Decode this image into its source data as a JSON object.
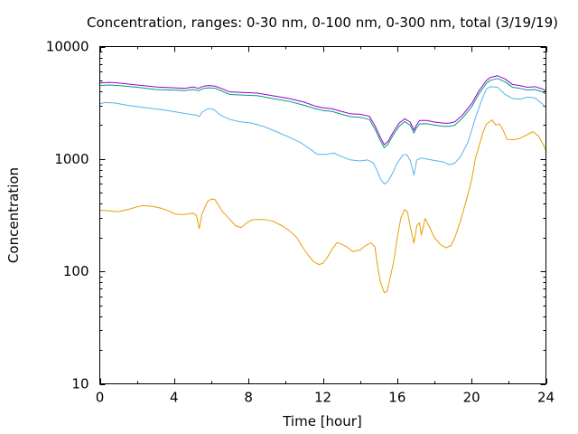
{
  "chart_data": {
    "type": "line",
    "title": "Concentration, ranges: 0-30 nm, 0-100 nm, 0-300 nm, total (3/19/19)",
    "xlabel": "Time [hour]",
    "ylabel": "Concentration",
    "xlim": [
      0,
      24
    ],
    "ylim": [
      10,
      10000
    ],
    "yscale": "log",
    "grid": false,
    "legend": "none",
    "xticks": [
      0,
      4,
      8,
      12,
      16,
      20,
      24
    ],
    "xtick_labels": [
      "0",
      "4",
      "8",
      "12",
      "16",
      "20",
      "24"
    ],
    "yticks": [
      10,
      100,
      1000,
      10000
    ],
    "ytick_labels": [
      "10",
      "100",
      "1000",
      "10000"
    ],
    "series": [
      {
        "color": "#e69f00",
        "points": [
          [
            0,
            350
          ],
          [
            0.5,
            345
          ],
          [
            1,
            340
          ],
          [
            1.5,
            355
          ],
          [
            2,
            375
          ],
          [
            2.3,
            385
          ],
          [
            2.8,
            380
          ],
          [
            3.3,
            365
          ],
          [
            3.8,
            340
          ],
          [
            4,
            325
          ],
          [
            4.5,
            320
          ],
          [
            5,
            330
          ],
          [
            5.2,
            315
          ],
          [
            5.35,
            240
          ],
          [
            5.5,
            325
          ],
          [
            5.8,
            420
          ],
          [
            6,
            440
          ],
          [
            6.2,
            435
          ],
          [
            6.6,
            340
          ],
          [
            7,
            290
          ],
          [
            7.3,
            255
          ],
          [
            7.6,
            245
          ],
          [
            7.9,
            270
          ],
          [
            8.2,
            288
          ],
          [
            8.8,
            290
          ],
          [
            9.3,
            280
          ],
          [
            9.8,
            255
          ],
          [
            10.2,
            230
          ],
          [
            10.6,
            200
          ],
          [
            10.9,
            165
          ],
          [
            11.2,
            140
          ],
          [
            11.5,
            122
          ],
          [
            11.8,
            115
          ],
          [
            12,
            118
          ],
          [
            12.2,
            130
          ],
          [
            12.5,
            158
          ],
          [
            12.75,
            180
          ],
          [
            13,
            175
          ],
          [
            13.3,
            165
          ],
          [
            13.6,
            150
          ],
          [
            14,
            155
          ],
          [
            14.3,
            170
          ],
          [
            14.6,
            180
          ],
          [
            14.8,
            165
          ],
          [
            14.95,
            110
          ],
          [
            15.1,
            80
          ],
          [
            15.3,
            65
          ],
          [
            15.45,
            66
          ],
          [
            15.6,
            85
          ],
          [
            15.8,
            120
          ],
          [
            16,
            200
          ],
          [
            16.2,
            300
          ],
          [
            16.4,
            355
          ],
          [
            16.55,
            340
          ],
          [
            16.7,
            250
          ],
          [
            16.9,
            178
          ],
          [
            17.05,
            255
          ],
          [
            17.2,
            270
          ],
          [
            17.3,
            210
          ],
          [
            17.5,
            295
          ],
          [
            17.7,
            255
          ],
          [
            18,
            200
          ],
          [
            18.3,
            175
          ],
          [
            18.6,
            162
          ],
          [
            18.9,
            170
          ],
          [
            19.1,
            200
          ],
          [
            19.4,
            280
          ],
          [
            19.8,
            480
          ],
          [
            20,
            650
          ],
          [
            20.2,
            1000
          ],
          [
            20.4,
            1300
          ],
          [
            20.6,
            1700
          ],
          [
            20.8,
            2050
          ],
          [
            21,
            2150
          ],
          [
            21.1,
            2230
          ],
          [
            21.3,
            2000
          ],
          [
            21.5,
            2050
          ],
          [
            21.7,
            1800
          ],
          [
            21.9,
            1500
          ],
          [
            22.2,
            1480
          ],
          [
            22.6,
            1520
          ],
          [
            23,
            1650
          ],
          [
            23.3,
            1750
          ],
          [
            23.6,
            1600
          ],
          [
            23.9,
            1300
          ],
          [
            24,
            1180
          ]
        ]
      },
      {
        "color": "#56b4e9",
        "points": [
          [
            0,
            3100
          ],
          [
            0.3,
            3180
          ],
          [
            0.8,
            3150
          ],
          [
            1.5,
            3000
          ],
          [
            2.5,
            2850
          ],
          [
            3.5,
            2720
          ],
          [
            4.5,
            2550
          ],
          [
            5.2,
            2450
          ],
          [
            5.35,
            2380
          ],
          [
            5.5,
            2600
          ],
          [
            5.8,
            2800
          ],
          [
            6.1,
            2780
          ],
          [
            6.5,
            2450
          ],
          [
            7,
            2250
          ],
          [
            7.5,
            2150
          ],
          [
            8.2,
            2080
          ],
          [
            8.8,
            1950
          ],
          [
            9.5,
            1750
          ],
          [
            10.2,
            1560
          ],
          [
            10.8,
            1400
          ],
          [
            11.3,
            1230
          ],
          [
            11.7,
            1100
          ],
          [
            12.2,
            1100
          ],
          [
            12.6,
            1130
          ],
          [
            13,
            1050
          ],
          [
            13.5,
            980
          ],
          [
            14,
            960
          ],
          [
            14.4,
            980
          ],
          [
            14.7,
            930
          ],
          [
            14.9,
            800
          ],
          [
            15.1,
            660
          ],
          [
            15.3,
            600
          ],
          [
            15.5,
            630
          ],
          [
            15.7,
            720
          ],
          [
            16,
            920
          ],
          [
            16.3,
            1080
          ],
          [
            16.5,
            1100
          ],
          [
            16.7,
            970
          ],
          [
            16.9,
            720
          ],
          [
            17.05,
            980
          ],
          [
            17.3,
            1020
          ],
          [
            17.6,
            1000
          ],
          [
            18,
            970
          ],
          [
            18.5,
            940
          ],
          [
            18.8,
            890
          ],
          [
            19.1,
            920
          ],
          [
            19.4,
            1050
          ],
          [
            19.8,
            1400
          ],
          [
            20.2,
            2300
          ],
          [
            20.5,
            3200
          ],
          [
            20.8,
            4200
          ],
          [
            21,
            4400
          ],
          [
            21.4,
            4350
          ],
          [
            21.8,
            3750
          ],
          [
            22.2,
            3450
          ],
          [
            22.6,
            3400
          ],
          [
            23,
            3550
          ],
          [
            23.4,
            3500
          ],
          [
            23.8,
            3100
          ],
          [
            24,
            2850
          ]
        ]
      },
      {
        "color": "#009e73",
        "points": [
          [
            0,
            4500
          ],
          [
            0.5,
            4550
          ],
          [
            1,
            4500
          ],
          [
            2,
            4350
          ],
          [
            3,
            4150
          ],
          [
            4,
            4100
          ],
          [
            4.6,
            4050
          ],
          [
            5,
            4150
          ],
          [
            5.3,
            4050
          ],
          [
            5.6,
            4250
          ],
          [
            5.9,
            4300
          ],
          [
            6.2,
            4250
          ],
          [
            6.6,
            4000
          ],
          [
            7,
            3750
          ],
          [
            7.8,
            3700
          ],
          [
            8.5,
            3650
          ],
          [
            9.3,
            3450
          ],
          [
            10.2,
            3250
          ],
          [
            11,
            3000
          ],
          [
            11.6,
            2800
          ],
          [
            12,
            2700
          ],
          [
            12.5,
            2650
          ],
          [
            13,
            2500
          ],
          [
            13.5,
            2380
          ],
          [
            14,
            2350
          ],
          [
            14.5,
            2250
          ],
          [
            14.8,
            1850
          ],
          [
            15.1,
            1450
          ],
          [
            15.3,
            1260
          ],
          [
            15.5,
            1350
          ],
          [
            15.8,
            1650
          ],
          [
            16.1,
            1950
          ],
          [
            16.4,
            2150
          ],
          [
            16.7,
            2000
          ],
          [
            16.9,
            1700
          ],
          [
            17,
            1850
          ],
          [
            17.2,
            2050
          ],
          [
            17.6,
            2060
          ],
          [
            18,
            2000
          ],
          [
            18.5,
            1950
          ],
          [
            18.8,
            1950
          ],
          [
            19.1,
            2000
          ],
          [
            19.5,
            2300
          ],
          [
            20,
            2900
          ],
          [
            20.4,
            3800
          ],
          [
            20.8,
            4700
          ],
          [
            21,
            5000
          ],
          [
            21.4,
            5200
          ],
          [
            21.8,
            4850
          ],
          [
            22.2,
            4350
          ],
          [
            22.6,
            4250
          ],
          [
            23,
            4100
          ],
          [
            23.4,
            4150
          ],
          [
            23.8,
            3950
          ],
          [
            24,
            3800
          ]
        ]
      },
      {
        "color": "#9400d3",
        "points": [
          [
            0,
            4750
          ],
          [
            0.5,
            4800
          ],
          [
            1,
            4750
          ],
          [
            2,
            4550
          ],
          [
            3,
            4380
          ],
          [
            4,
            4300
          ],
          [
            4.6,
            4250
          ],
          [
            5,
            4380
          ],
          [
            5.3,
            4250
          ],
          [
            5.6,
            4450
          ],
          [
            5.9,
            4500
          ],
          [
            6.2,
            4450
          ],
          [
            6.6,
            4200
          ],
          [
            7,
            3950
          ],
          [
            7.8,
            3900
          ],
          [
            8.5,
            3850
          ],
          [
            9.3,
            3650
          ],
          [
            10.2,
            3450
          ],
          [
            11,
            3200
          ],
          [
            11.6,
            2950
          ],
          [
            12,
            2850
          ],
          [
            12.5,
            2800
          ],
          [
            13,
            2650
          ],
          [
            13.5,
            2520
          ],
          [
            14,
            2500
          ],
          [
            14.5,
            2400
          ],
          [
            14.8,
            1980
          ],
          [
            15.1,
            1550
          ],
          [
            15.3,
            1340
          ],
          [
            15.5,
            1430
          ],
          [
            15.8,
            1750
          ],
          [
            16.1,
            2080
          ],
          [
            16.4,
            2280
          ],
          [
            16.7,
            2130
          ],
          [
            16.9,
            1800
          ],
          [
            17,
            1960
          ],
          [
            17.2,
            2200
          ],
          [
            17.6,
            2200
          ],
          [
            18,
            2130
          ],
          [
            18.5,
            2080
          ],
          [
            18.8,
            2080
          ],
          [
            19.1,
            2140
          ],
          [
            19.5,
            2450
          ],
          [
            20,
            3100
          ],
          [
            20.4,
            4050
          ],
          [
            20.8,
            5000
          ],
          [
            21,
            5300
          ],
          [
            21.4,
            5500
          ],
          [
            21.8,
            5150
          ],
          [
            22.2,
            4600
          ],
          [
            22.6,
            4500
          ],
          [
            23,
            4350
          ],
          [
            23.4,
            4400
          ],
          [
            23.8,
            4200
          ],
          [
            24,
            4050
          ]
        ]
      }
    ]
  }
}
